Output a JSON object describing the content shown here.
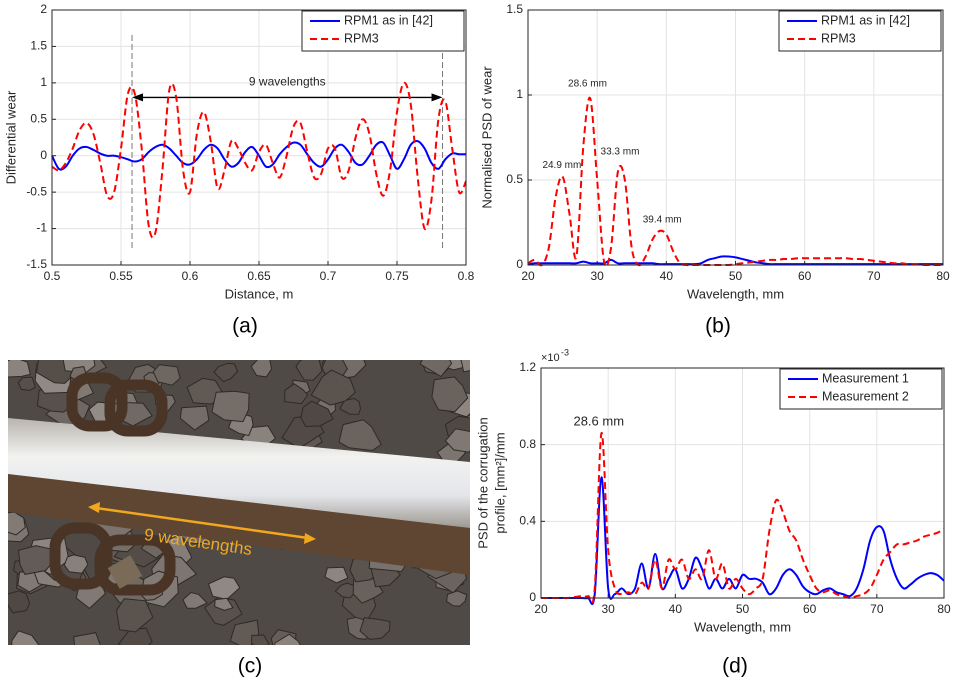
{
  "chart_data": [
    {
      "type": "line",
      "caption": "(a)",
      "xlabel": "Distance, m",
      "ylabel": [
        "Differential wear"
      ],
      "xlim": [
        0.5,
        0.8
      ],
      "xticks": [
        0.5,
        0.55,
        0.6,
        0.65,
        0.7,
        0.75,
        0.8
      ],
      "ylim": [
        -1.5,
        2
      ],
      "yticks": [
        -1.5,
        -1,
        -0.5,
        0,
        0.5,
        1,
        1.5,
        2
      ],
      "grid": true,
      "legend": "upper right",
      "x": [
        0.5,
        0.505,
        0.51,
        0.515,
        0.52,
        0.525,
        0.53,
        0.535,
        0.54,
        0.545,
        0.55,
        0.555,
        0.56,
        0.565,
        0.57,
        0.575,
        0.58,
        0.585,
        0.59,
        0.595,
        0.6,
        0.605,
        0.61,
        0.615,
        0.62,
        0.625,
        0.63,
        0.635,
        0.64,
        0.645,
        0.65,
        0.655,
        0.66,
        0.665,
        0.67,
        0.675,
        0.68,
        0.685,
        0.69,
        0.695,
        0.7,
        0.705,
        0.71,
        0.715,
        0.72,
        0.725,
        0.73,
        0.735,
        0.74,
        0.745,
        0.75,
        0.755,
        0.76,
        0.765,
        0.77,
        0.775,
        0.78,
        0.785,
        0.79,
        0.795,
        0.8
      ],
      "series": [
        {
          "name": "RPM1 as in [42]",
          "color": "#0000ff",
          "line_style": "solid",
          "values": [
            0,
            -0.18,
            -0.15,
            0,
            0.1,
            0.12,
            0.08,
            0.03,
            0,
            0,
            -0.02,
            -0.05,
            -0.08,
            -0.05,
            0.05,
            0.12,
            0.15,
            0.1,
            0,
            -0.1,
            -0.12,
            -0.05,
            0.08,
            0.15,
            0.1,
            -0.05,
            -0.15,
            -0.1,
            0.05,
            0.12,
            0,
            -0.15,
            -0.12,
            0.02,
            0.12,
            0.18,
            0.15,
            0.02,
            -0.1,
            -0.15,
            -0.05,
            0.1,
            0.15,
            0.05,
            -0.1,
            -0.12,
            0,
            0.15,
            0.18,
            0,
            -0.18,
            -0.05,
            0.15,
            0.2,
            0.1,
            -0.1,
            -0.18,
            -0.05,
            0.03,
            0.02,
            0.02
          ]
        },
        {
          "name": "RPM3",
          "color": "#ff0000",
          "line_style": "dashed",
          "values": [
            -0.15,
            -0.2,
            -0.1,
            0.1,
            0.35,
            0.45,
            0.3,
            -0.1,
            -0.55,
            -0.5,
            0.1,
            0.85,
            0.85,
            0.1,
            -0.95,
            -1.05,
            -0.2,
            0.9,
            0.8,
            -0.2,
            -0.5,
            0.3,
            0.6,
            0.2,
            -0.45,
            -0.2,
            0.2,
            0.1,
            -0.1,
            -0.2,
            0.05,
            0.15,
            -0.1,
            -0.3,
            0,
            0.4,
            0.45,
            0.05,
            -0.3,
            -0.25,
            0.1,
            0.1,
            -0.3,
            -0.2,
            0.25,
            0.5,
            0.3,
            -0.25,
            -0.55,
            -0.2,
            0.6,
            1,
            0.7,
            -0.3,
            -1,
            -0.6,
            0.5,
            0.75,
            0.1,
            -0.5,
            -0.35
          ]
        }
      ],
      "span_annotation": {
        "text": "9 wavelengths",
        "x": [
          0.558,
          0.783
        ],
        "y": 0.8
      },
      "annotations": []
    },
    {
      "type": "line",
      "caption": "(b)",
      "xlabel": "Wavelength, mm",
      "ylabel": [
        "Normalised PSD of wear"
      ],
      "xlim": [
        20,
        80
      ],
      "xticks": [
        20,
        30,
        40,
        50,
        60,
        70,
        80
      ],
      "ylim": [
        0,
        1.5
      ],
      "yticks": [
        0,
        0.5,
        1,
        1.5
      ],
      "grid": true,
      "legend": "upper right",
      "x": [
        20,
        21,
        22,
        23,
        24,
        25,
        26,
        27,
        28,
        29,
        30,
        31,
        32,
        33,
        34,
        35,
        36,
        37,
        38,
        39,
        40,
        41,
        42,
        43,
        44,
        45,
        46,
        47,
        48,
        49,
        50,
        51,
        52,
        53,
        54,
        55,
        56,
        57,
        58,
        59,
        60,
        61,
        62,
        63,
        64,
        65,
        66,
        67,
        68,
        69,
        70,
        71,
        72,
        73,
        74,
        75,
        76,
        77,
        78,
        79,
        80
      ],
      "series": [
        {
          "name": "RPM1 as in [42]",
          "color": "#0000ff",
          "line_style": "solid",
          "values": [
            0.005,
            0.01,
            0.01,
            0.01,
            0.01,
            0.01,
            0.01,
            0.01,
            0.02,
            0.01,
            0.01,
            0.01,
            0.03,
            0.01,
            0.01,
            0.01,
            0.01,
            0.01,
            0.01,
            0.005,
            0.005,
            0.005,
            0.005,
            0.005,
            0.005,
            0.01,
            0.03,
            0.04,
            0.05,
            0.05,
            0.045,
            0.035,
            0.025,
            0.015,
            0.01,
            0.005,
            0.005,
            0.005,
            0.005,
            0.005,
            0.005,
            0.005,
            0.005,
            0.005,
            0.005,
            0.005,
            0.005,
            0.005,
            0.005,
            0.005,
            0.005,
            0.005,
            0.005,
            0.005,
            0.005,
            0.005,
            0.005,
            0.005,
            0.005,
            0.005,
            0.005
          ]
        },
        {
          "name": "RPM3",
          "color": "#ff0000",
          "line_style": "dashed",
          "values": [
            0.01,
            0.03,
            0,
            0.1,
            0.4,
            0.52,
            0.3,
            0.05,
            0.7,
            0.98,
            0.5,
            0.02,
            0.1,
            0.55,
            0.5,
            0.1,
            0,
            0.05,
            0.15,
            0.2,
            0.18,
            0.08,
            0.01,
            0,
            0,
            0,
            0,
            0,
            0,
            0,
            0.005,
            0.01,
            0.015,
            0.02,
            0.025,
            0.03,
            0.03,
            0.035,
            0.035,
            0.04,
            0.04,
            0.04,
            0.04,
            0.04,
            0.04,
            0.04,
            0.04,
            0.035,
            0.035,
            0.03,
            0.025,
            0.02,
            0.015,
            0.01,
            0.01,
            0.005,
            0.005,
            0,
            0,
            0,
            0
          ]
        }
      ],
      "annotations": [
        {
          "text": "24.9 mm",
          "x": 24.9,
          "y": 0.52
        },
        {
          "text": "28.6 mm",
          "x": 28.6,
          "y": 1
        },
        {
          "text": "33.3 mm",
          "x": 33.3,
          "y": 0.6
        },
        {
          "text": "39.4 mm",
          "x": 39.4,
          "y": 0.2
        }
      ]
    },
    {
      "type": "line",
      "caption": "(d)",
      "xlabel": "Wavelength, mm",
      "ylabel": [
        "PSD of the corrugation",
        "profile, [mm²]/mm"
      ],
      "y_multiplier": "×10",
      "y_exponent": "-3",
      "xlim": [
        20,
        80
      ],
      "xticks": [
        20,
        30,
        40,
        50,
        60,
        70,
        80
      ],
      "ylim": [
        0,
        0.0012
      ],
      "yticks": [
        0,
        {
          "value": 0.0004,
          "label": "0.4"
        },
        {
          "value": 0.0008,
          "label": "0.8"
        },
        {
          "value": 0.0012,
          "label": "1.2"
        }
      ],
      "grid": true,
      "legend": "upper right",
      "x": [
        20,
        21,
        22,
        23,
        24,
        25,
        26,
        27,
        28,
        29,
        30,
        31,
        32,
        33,
        34,
        35,
        36,
        37,
        38,
        39,
        40,
        41,
        42,
        43,
        44,
        45,
        46,
        47,
        48,
        49,
        50,
        51,
        52,
        53,
        54,
        55,
        56,
        57,
        58,
        59,
        60,
        61,
        62,
        63,
        64,
        65,
        66,
        67,
        68,
        69,
        70,
        71,
        72,
        73,
        74,
        75,
        76,
        77,
        78,
        79,
        80
      ],
      "series": [
        {
          "name": "Measurement 1",
          "color": "#0000ff",
          "line_style": "solid",
          "values": [
            0,
            0,
            0,
            0,
            0,
            0,
            0,
            0,
            2e-05,
            0.00063,
            5e-05,
            2e-05,
            5e-05,
            2e-05,
            5e-05,
            0.00018,
            5e-05,
            0.00023,
            5e-05,
            0.0001,
            0.00015,
            5e-05,
            0.0001,
            0.00021,
            0.00015,
            5e-05,
            0.0001,
            5e-05,
            0.0001,
            5e-05,
            0.00012,
            0.0001,
            0.0001,
            8e-05,
            2e-05,
            5e-05,
            0.00012,
            0.00015,
            0.00012,
            6e-05,
            3e-05,
            2e-05,
            4e-05,
            5e-05,
            3e-05,
            2e-05,
            1e-05,
            5e-05,
            0.00015,
            0.0003,
            0.00037,
            0.00035,
            0.0002,
            0.0001,
            5e-05,
            7e-05,
            0.0001,
            0.00012,
            0.00013,
            0.00012,
            9e-05
          ]
        },
        {
          "name": "Measurement 2",
          "color": "#ff0000",
          "line_style": "dashed",
          "values": [
            0,
            0,
            0,
            0,
            0,
            5e-06,
            1e-05,
            1e-05,
            5e-05,
            0.00086,
            0.00025,
            5e-05,
            2e-05,
            3e-05,
            2e-05,
            8e-05,
            5e-05,
            0.0002,
            5e-05,
            0.0002,
            0.00015,
            0.0002,
            0.0001,
            0.00015,
            0.0001,
            0.00025,
            0.0001,
            0.00018,
            5e-05,
            0.0001,
            5e-05,
            2e-05,
            5e-05,
            0.0001,
            0.00035,
            0.00051,
            0.00045,
            0.00035,
            0.0003,
            0.0002,
            0.00012,
            5e-05,
            3e-05,
            4e-05,
            2e-05,
            1e-05,
            0,
            1e-05,
            2e-05,
            5e-05,
            0.00012,
            0.0002,
            0.00024,
            0.00028,
            0.00028,
            0.00029,
            0.0003,
            0.00032,
            0.00033,
            0.00034,
            0.00036
          ]
        }
      ],
      "annotations": [
        {
          "text": "28.6 mm",
          "x": 28.6,
          "y": 0.00086
        }
      ]
    }
  ],
  "photo": {
    "annotation": "9 wavelengths",
    "caption": "(c)"
  }
}
